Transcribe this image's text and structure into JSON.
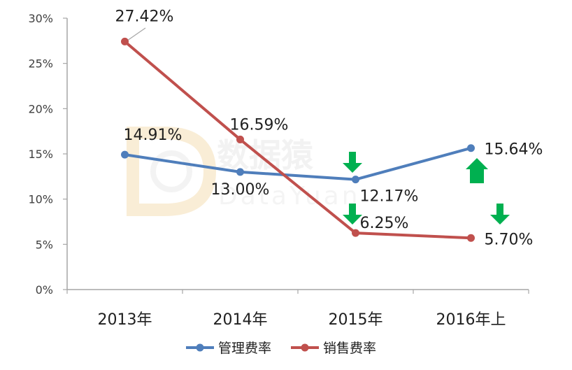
{
  "chart_data": {
    "type": "line",
    "categories": [
      "2013年",
      "2014年",
      "2015年",
      "2016年上"
    ],
    "series": [
      {
        "name": "管理费率",
        "values": [
          14.91,
          13.0,
          12.17,
          15.64
        ],
        "labels": [
          "14.91%",
          "13.00%",
          "12.17%",
          "15.64%"
        ],
        "color": "#4F7EBB"
      },
      {
        "name": "销售费率",
        "values": [
          27.42,
          16.59,
          6.25,
          5.7
        ],
        "labels": [
          "27.42%",
          "16.59%",
          "6.25%",
          "5.70%"
        ],
        "color": "#C0504D"
      }
    ],
    "y_ticks": [
      "0%",
      "5%",
      "10%",
      "15%",
      "20%",
      "25%",
      "30%"
    ],
    "ylim": [
      0,
      30
    ],
    "grid": false,
    "legend_position": "bottom",
    "annotations": [
      {
        "type": "arrow",
        "direction": "down",
        "at": "管理费率 2015年",
        "color": "#00B050"
      },
      {
        "type": "arrow",
        "direction": "down",
        "at": "销售费率 2015年",
        "color": "#00B050"
      },
      {
        "type": "arrow",
        "direction": "up",
        "at": "管理费率 2016年上",
        "color": "#00B050"
      },
      {
        "type": "arrow",
        "direction": "down",
        "at": "销售费率 2016年上",
        "color": "#00B050"
      }
    ]
  },
  "watermark": {
    "text": "数据猿",
    "subtext": "DataYuan"
  }
}
